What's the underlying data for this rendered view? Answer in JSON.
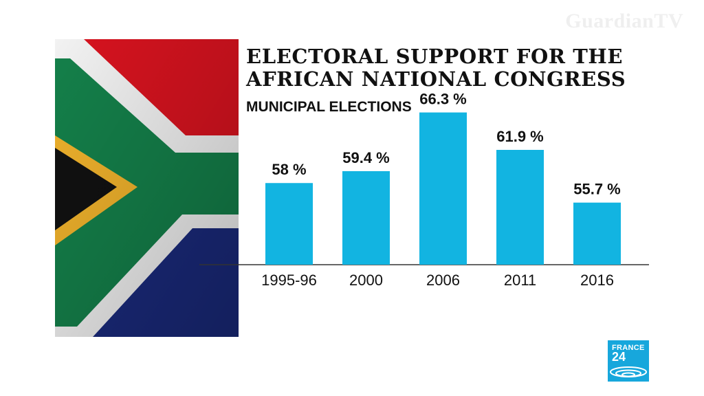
{
  "watermark": "GuardianTV",
  "logo": {
    "line1": "FRANCE",
    "line2": "24"
  },
  "chart_data": {
    "type": "bar",
    "title": "ELECTORAL SUPPORT FOR THE AFRICAN NATIONAL CONGRESS",
    "subtitle": "MUNICIPAL ELECTIONS",
    "categories": [
      "1995-96",
      "2000",
      "2006",
      "2011",
      "2016"
    ],
    "values": [
      58,
      59.4,
      66.3,
      61.9,
      55.7
    ],
    "value_labels": [
      "58 %",
      "59.4 %",
      "66.3 %",
      "61.9 %",
      "55.7 %"
    ],
    "unit": "%",
    "xlabel": "",
    "ylabel": "",
    "grid": false,
    "legend": "none",
    "colors": {
      "bar": "#12b4e1",
      "axis": "#333333",
      "text": "#111111"
    }
  },
  "flag_colors": {
    "red": "#d8131f",
    "blue": "#1a2a7c",
    "green": "#14804a",
    "white": "#f2f2f2",
    "gold": "#f1b32c",
    "black": "#111111"
  }
}
